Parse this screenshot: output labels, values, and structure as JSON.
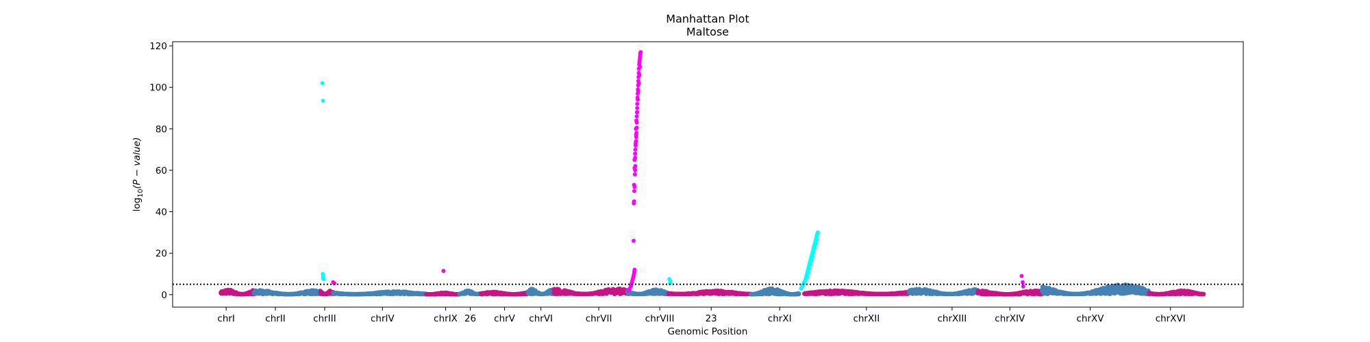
{
  "chart_data": {
    "type": "scatter",
    "title": "Manhattan Plot",
    "subtitle": "Maltose",
    "xlabel": "Genomic Position",
    "ylabel_main": "log",
    "ylabel_sub": "10",
    "ylabel_rest": "(P − value)",
    "ylim": [
      -6,
      122
    ],
    "xlim": [
      0,
      1000
    ],
    "y_ticks": [
      0,
      20,
      40,
      60,
      80,
      100,
      120
    ],
    "threshold": 5,
    "grid": false,
    "colors": {
      "blue": "#4682b4",
      "pink": "#c71585",
      "magenta": "#ff00ff",
      "cyan": "#00ffff",
      "threshold": "#000000"
    },
    "x_ticks": [
      {
        "label": "chrI",
        "x": 50
      },
      {
        "label": "chrII",
        "x": 96
      },
      {
        "label": "chrIII",
        "x": 142
      },
      {
        "label": "chrIV",
        "x": 196
      },
      {
        "label": "chrIX",
        "x": 255
      },
      {
        "label": "26",
        "x": 278
      },
      {
        "label": "chrV",
        "x": 310
      },
      {
        "label": "chrVI",
        "x": 344
      },
      {
        "label": "chrVII",
        "x": 398
      },
      {
        "label": "chrVIII",
        "x": 455
      },
      {
        "label": "23",
        "x": 503
      },
      {
        "label": "chrXI",
        "x": 567
      },
      {
        "label": "chrXII",
        "x": 648
      },
      {
        "label": "chrXIII",
        "x": 728
      },
      {
        "label": "chrXIV",
        "x": 782
      },
      {
        "label": "chrXV",
        "x": 857
      },
      {
        "label": "chrXVI",
        "x": 932
      }
    ],
    "segments": [
      {
        "start": 45,
        "end": 76,
        "color": "pink",
        "base": 0.6,
        "peak": 2.5
      },
      {
        "start": 76,
        "end": 138,
        "color": "blue",
        "base": 0.6,
        "peak": 2.2
      },
      {
        "start": 138,
        "end": 150,
        "color": "pink",
        "base": 0.8,
        "peak": 2.0
      },
      {
        "start": 150,
        "end": 237,
        "color": "blue",
        "base": 0.6,
        "peak": 1.6
      },
      {
        "start": 237,
        "end": 268,
        "color": "pink",
        "base": 0.4,
        "peak": 1.0
      },
      {
        "start": 268,
        "end": 288,
        "color": "blue",
        "base": 0.8,
        "peak": 2.0
      },
      {
        "start": 288,
        "end": 332,
        "color": "pink",
        "base": 0.5,
        "peak": 1.4
      },
      {
        "start": 332,
        "end": 356,
        "color": "blue",
        "base": 0.8,
        "peak": 3.0
      },
      {
        "start": 356,
        "end": 425,
        "color": "pink",
        "base": 0.8,
        "peak": 3.0
      },
      {
        "start": 425,
        "end": 463,
        "color": "blue",
        "base": 0.8,
        "peak": 2.5
      },
      {
        "start": 463,
        "end": 540,
        "color": "pink",
        "base": 0.8,
        "peak": 2.0
      },
      {
        "start": 540,
        "end": 585,
        "color": "blue",
        "base": 0.5,
        "peak": 3.0
      },
      {
        "start": 590,
        "end": 688,
        "color": "pink",
        "base": 0.8,
        "peak": 2.0
      },
      {
        "start": 688,
        "end": 752,
        "color": "blue",
        "base": 0.8,
        "peak": 2.8
      },
      {
        "start": 752,
        "end": 812,
        "color": "pink",
        "base": 0.5,
        "peak": 2.0
      },
      {
        "start": 812,
        "end": 912,
        "color": "blue",
        "base": 0.8,
        "peak": 5.0
      },
      {
        "start": 912,
        "end": 963,
        "color": "pink",
        "base": 0.6,
        "peak": 2.0
      }
    ],
    "series": [
      {
        "color": "magenta",
        "points": [
          [
            426,
            2
          ],
          [
            427,
            3
          ],
          [
            428,
            4
          ],
          [
            428.5,
            5
          ],
          [
            429,
            6
          ],
          [
            429.5,
            7
          ],
          [
            430,
            8
          ],
          [
            430.5,
            9
          ],
          [
            431,
            10
          ],
          [
            431.2,
            11
          ],
          [
            431.5,
            12
          ],
          [
            430.6,
            26
          ],
          [
            430.8,
            44
          ],
          [
            431.0,
            45
          ],
          [
            431.2,
            50
          ],
          [
            431.5,
            52
          ],
          [
            431.8,
            58
          ],
          [
            432.0,
            60
          ],
          [
            432.2,
            62
          ],
          [
            431.5,
            65
          ],
          [
            432.0,
            68
          ],
          [
            432.2,
            70
          ],
          [
            432.5,
            72
          ],
          [
            432.8,
            74
          ],
          [
            433.0,
            76
          ],
          [
            433.2,
            78
          ],
          [
            432.7,
            80
          ],
          [
            433.5,
            80.5
          ],
          [
            433.2,
            84
          ],
          [
            433.5,
            86
          ],
          [
            433.7,
            88
          ],
          [
            433.9,
            90
          ],
          [
            434.0,
            92
          ],
          [
            434.2,
            95
          ],
          [
            434.4,
            97
          ],
          [
            434.6,
            99
          ],
          [
            434.8,
            101
          ],
          [
            435.0,
            103
          ],
          [
            435.2,
            105
          ],
          [
            435.4,
            107
          ],
          [
            435.6,
            109
          ],
          [
            435.8,
            111
          ],
          [
            436.0,
            112
          ],
          [
            436.2,
            113
          ],
          [
            436.4,
            114
          ],
          [
            436.6,
            115
          ],
          [
            436.8,
            116
          ],
          [
            437.0,
            116.5
          ],
          [
            437.2,
            117
          ],
          [
            436.5,
            110
          ],
          [
            436.0,
            106
          ],
          [
            435.5,
            102
          ],
          [
            435.0,
            98
          ],
          [
            434.5,
            94
          ],
          [
            434.0,
            88
          ],
          [
            433.5,
            83
          ],
          [
            433.0,
            77
          ],
          [
            432.5,
            73
          ],
          [
            432.0,
            66
          ],
          [
            431.5,
            61
          ],
          [
            431.0,
            53
          ],
          [
            150,
            6
          ],
          [
            151,
            5.5
          ],
          [
            253,
            11.5
          ],
          [
            793,
            9
          ],
          [
            794,
            6
          ],
          [
            794.5,
            4
          ]
        ]
      },
      {
        "color": "cyan",
        "points": [
          [
            140,
            102
          ],
          [
            140.5,
            93.5
          ],
          [
            140.3,
            10
          ],
          [
            140.7,
            9
          ],
          [
            140.5,
            8
          ],
          [
            141,
            7.5
          ],
          [
            464,
            7.5
          ],
          [
            465,
            6.5
          ],
          [
            464.5,
            5.5
          ],
          [
            587,
            3
          ],
          [
            588,
            4
          ],
          [
            588.5,
            4.5
          ],
          [
            589,
            5
          ],
          [
            589.5,
            5.5
          ],
          [
            590,
            6
          ],
          [
            590.5,
            6.5
          ],
          [
            591,
            7
          ],
          [
            591.5,
            8
          ],
          [
            592,
            9
          ],
          [
            592.5,
            10
          ],
          [
            593,
            11
          ],
          [
            593.5,
            12
          ],
          [
            594,
            13
          ],
          [
            594.5,
            14
          ],
          [
            595,
            15
          ],
          [
            595.5,
            16
          ],
          [
            596,
            17
          ],
          [
            596.5,
            18
          ],
          [
            597,
            19
          ],
          [
            597.5,
            20
          ],
          [
            598,
            21
          ],
          [
            598.5,
            22
          ],
          [
            599,
            23
          ],
          [
            599.5,
            24
          ],
          [
            600,
            25
          ],
          [
            600.5,
            26
          ],
          [
            601,
            27
          ],
          [
            601.5,
            28
          ],
          [
            602,
            29
          ],
          [
            602.3,
            29.5
          ],
          [
            602.6,
            30
          ],
          [
            601.8,
            26.5
          ],
          [
            600.8,
            24.5
          ],
          [
            599.8,
            22.5
          ],
          [
            598.8,
            20.5
          ],
          [
            597.8,
            18.5
          ],
          [
            596.8,
            16.5
          ],
          [
            595.8,
            14.5
          ],
          [
            594.8,
            12.5
          ],
          [
            593.8,
            10.5
          ],
          [
            592.8,
            8.5
          ]
        ]
      }
    ]
  }
}
